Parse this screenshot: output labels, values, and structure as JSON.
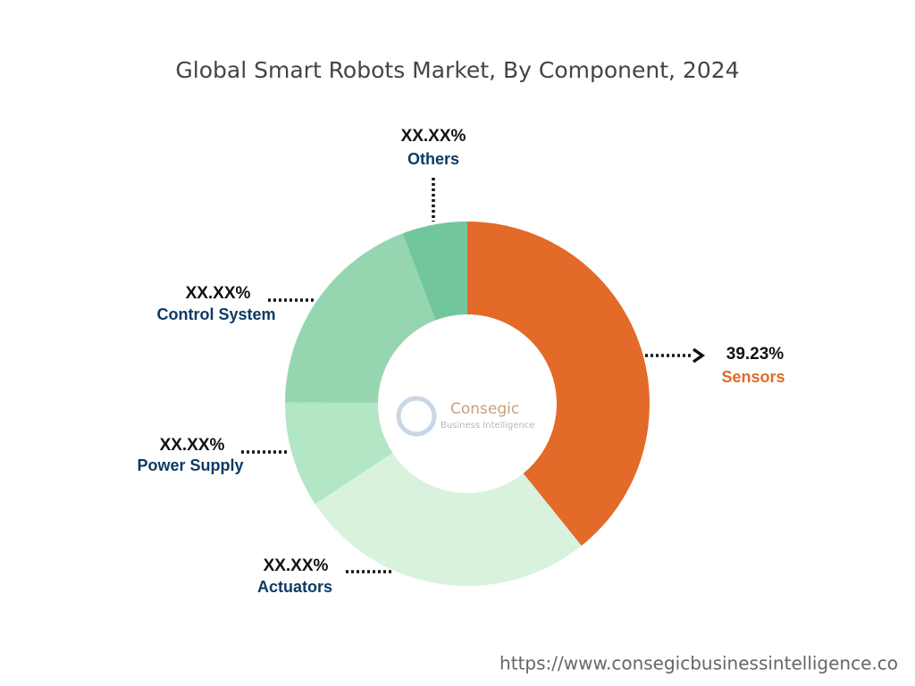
{
  "chart_data": {
    "type": "donut",
    "title": "Global Smart Robots Market, By Component, 2024",
    "categories": [
      "Sensors",
      "Actuators",
      "Power Supply",
      "Control System",
      "Others"
    ],
    "values": [
      39.23,
      26.5,
      9.4,
      19.1,
      5.77
    ],
    "value_labels": [
      "39.23%",
      "XX.XX%",
      "XX.XX%",
      "XX.XX%",
      "XX.XX%"
    ],
    "colors": [
      "#e36a28",
      "#d9f2de",
      "#b3e6c5",
      "#95d6b0",
      "#72c69c"
    ]
  },
  "logo": {
    "name": "Consegic",
    "tagline": "Business Intelligence"
  },
  "source_url": "https://www.consegicbusinessintelligence.co"
}
